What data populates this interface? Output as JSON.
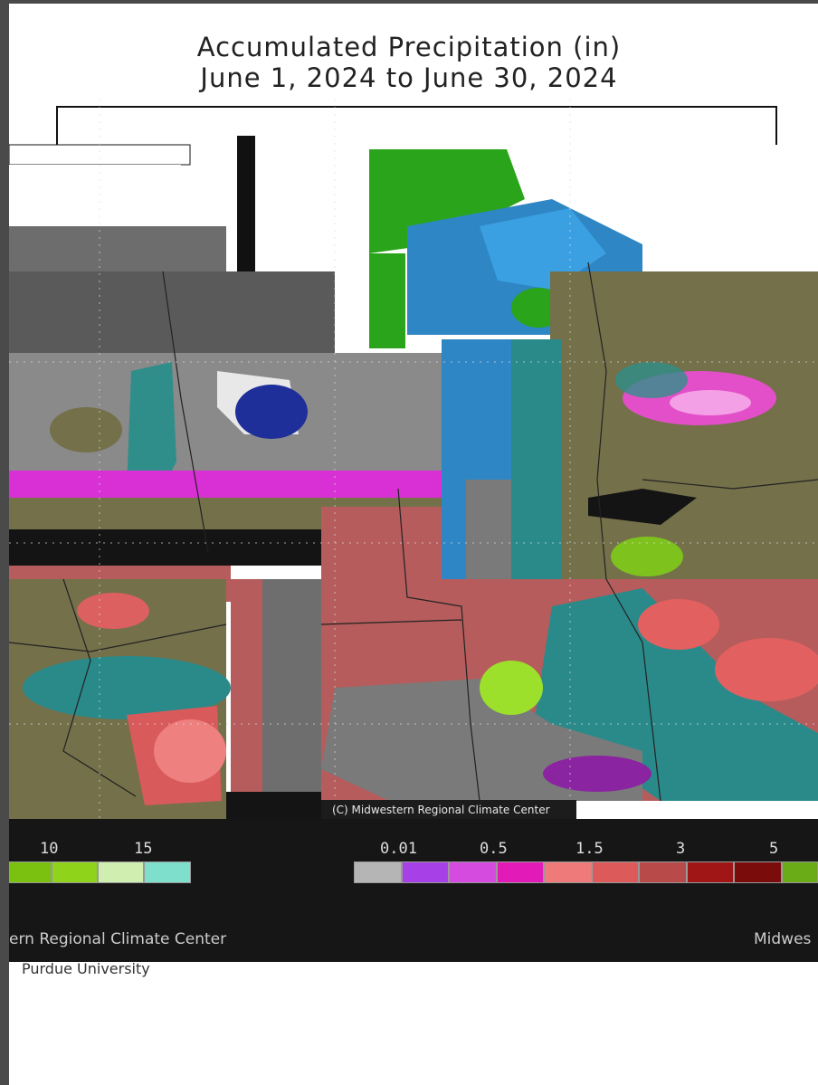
{
  "title": {
    "line1": "Accumulated Precipitation (in)",
    "line2": "June 1, 2024 to June 30, 2024"
  },
  "map": {
    "copyright": "(C) Midwestern Regional Climate Center"
  },
  "legend_left": {
    "labels": [
      "10",
      "15"
    ],
    "swatches": [
      "#7ac20f",
      "#8fd41b",
      "#cfeeb0",
      "#7ee0cc"
    ]
  },
  "legend_right": {
    "labels": [
      "0.01",
      "0.5",
      "1.5",
      "3",
      "5"
    ],
    "swatches": [
      "#b5b5b5",
      "#a840e8",
      "#d54be0",
      "#e21ab8",
      "#ef7a7a",
      "#dc5a5a",
      "#b94a4a",
      "#a01515",
      "#7a0c0c",
      "#6aac18"
    ]
  },
  "credits": {
    "left": "ern Regional Climate Center",
    "right": "Midwes",
    "university": "Purdue University"
  },
  "colors": {
    "background": "#ffffff",
    "band": "#161616",
    "frame": "#4a4a4a"
  }
}
